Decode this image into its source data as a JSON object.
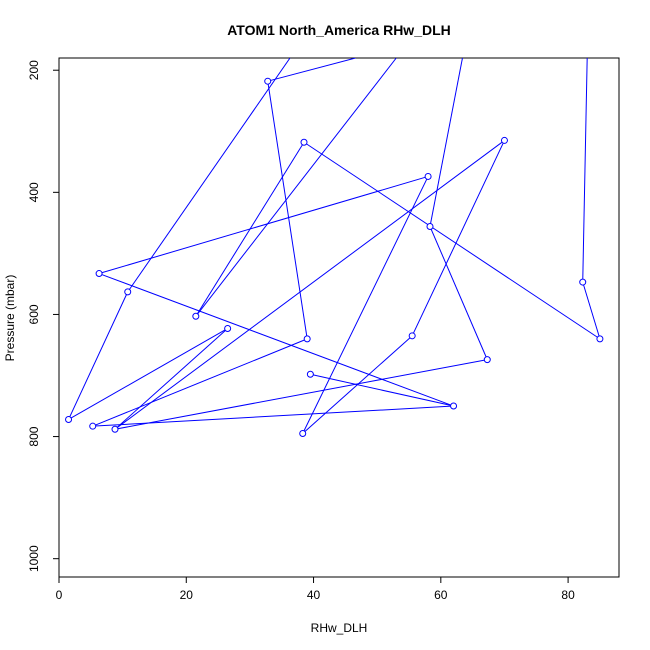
{
  "chart_data": {
    "type": "line",
    "title": "ATOM1 North_America RHw_DLH",
    "xlabel": "RHw_DLH",
    "ylabel": "Pressure (mbar)",
    "xlim": [
      0,
      88
    ],
    "ylim": [
      1030,
      180
    ],
    "y_reversed": true,
    "xticks": [
      0,
      20,
      40,
      60,
      80
    ],
    "yticks": [
      200,
      400,
      600,
      800,
      1000
    ],
    "grid": false,
    "legend": "none",
    "series": [
      {
        "color": "#0000ff",
        "marker": "open-circle",
        "points": [
          {
            "x": 82.3,
            "y": 547
          },
          {
            "x": 85.0,
            "y": 640
          },
          {
            "x": 38.5,
            "y": 318
          },
          {
            "x": 58.0,
            "y": 374
          },
          {
            "x": 6.3,
            "y": 533
          },
          {
            "x": 62.0,
            "y": 750
          },
          {
            "x": 39.5,
            "y": 698
          },
          {
            "x": 67.3,
            "y": 674
          },
          {
            "x": 58.3,
            "y": 456
          },
          {
            "x": 32.8,
            "y": 218
          },
          {
            "x": 39.0,
            "y": 640
          },
          {
            "x": 21.5,
            "y": 603
          },
          {
            "x": 55.5,
            "y": 635
          },
          {
            "x": 38.3,
            "y": 795
          },
          {
            "x": 26.5,
            "y": 623
          },
          {
            "x": 1.5,
            "y": 772
          },
          {
            "x": 10.8,
            "y": 563
          },
          {
            "x": 70.0,
            "y": 315
          },
          {
            "x": 8.8,
            "y": 788
          },
          {
            "x": 5.3,
            "y": 783
          }
        ],
        "segments": [
          [
            [
              82.3,
              547
            ],
            [
              83.0,
              180
            ]
          ],
          [
            [
              82.3,
              547
            ],
            [
              85.0,
              640
            ]
          ],
          [
            [
              85.0,
              640
            ],
            [
              38.5,
              318
            ]
          ],
          [
            [
              38.5,
              318
            ],
            [
              21.5,
              603
            ]
          ],
          [
            [
              58.0,
              374
            ],
            [
              6.3,
              533
            ]
          ],
          [
            [
              6.3,
              533
            ],
            [
              62.0,
              750
            ]
          ],
          [
            [
              62.0,
              750
            ],
            [
              39.5,
              698
            ]
          ],
          [
            [
              62.0,
              750
            ],
            [
              5.3,
              783
            ]
          ],
          [
            [
              5.3,
              783
            ],
            [
              39.0,
              640
            ]
          ],
          [
            [
              67.3,
              674
            ],
            [
              58.3,
              456
            ]
          ],
          [
            [
              58.3,
              456
            ],
            [
              63.4,
              180
            ]
          ],
          [
            [
              32.8,
              218
            ],
            [
              46.6,
              180
            ]
          ],
          [
            [
              32.8,
              218
            ],
            [
              39.0,
              640
            ]
          ],
          [
            [
              21.5,
              603
            ],
            [
              53.0,
              180
            ]
          ],
          [
            [
              67.3,
              674
            ],
            [
              8.8,
              788
            ]
          ],
          [
            [
              8.8,
              788
            ],
            [
              26.5,
              623
            ]
          ],
          [
            [
              26.5,
              623
            ],
            [
              1.5,
              772
            ]
          ],
          [
            [
              1.5,
              772
            ],
            [
              10.8,
              563
            ]
          ],
          [
            [
              10.8,
              563
            ],
            [
              36.3,
              180
            ]
          ],
          [
            [
              55.5,
              635
            ],
            [
              38.3,
              795
            ]
          ],
          [
            [
              38.3,
              795
            ],
            [
              58.0,
              374
            ]
          ],
          [
            [
              55.5,
              635
            ],
            [
              70.0,
              315
            ]
          ],
          [
            [
              70.0,
              315
            ],
            [
              8.8,
              788
            ]
          ]
        ]
      }
    ]
  }
}
